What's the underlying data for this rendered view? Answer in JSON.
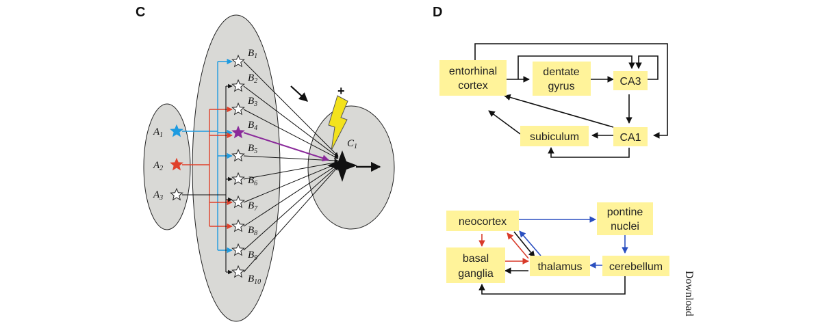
{
  "panels": {
    "c": "C",
    "d": "D"
  },
  "panel_c": {
    "nodes": {
      "a1": {
        "letter": "A",
        "index": "1"
      },
      "a2": {
        "letter": "A",
        "index": "2"
      },
      "a3": {
        "letter": "A",
        "index": "3"
      },
      "b1": {
        "letter": "B",
        "index": "1"
      },
      "b2": {
        "letter": "B",
        "index": "2"
      },
      "b3": {
        "letter": "B",
        "index": "3"
      },
      "b4": {
        "letter": "B",
        "index": "4"
      },
      "b5": {
        "letter": "B",
        "index": "5"
      },
      "b6": {
        "letter": "B",
        "index": "6"
      },
      "b7": {
        "letter": "B",
        "index": "7"
      },
      "b8": {
        "letter": "B",
        "index": "8"
      },
      "b9": {
        "letter": "B",
        "index": "9"
      },
      "b10": {
        "letter": "B",
        "index": "10"
      },
      "c1": {
        "letter": "C",
        "index": "1"
      }
    },
    "plus_sign": "+",
    "colors": {
      "blue": "#1e9be0",
      "red": "#e0402a",
      "purple": "#8a2a9a",
      "bolt": "#f3e21c",
      "ellipse": "#d9d9d6"
    }
  },
  "panel_d": {
    "hippocampus": {
      "entorhinal_line1": "entorhinal",
      "entorhinal_line2": "cortex",
      "dentate_line1": "dentate",
      "dentate_line2": "gyrus",
      "ca3": "CA3",
      "ca1": "CA1",
      "subiculum": "subiculum"
    },
    "motor_loop": {
      "neocortex": "neocortex",
      "pontine_line1": "pontine",
      "pontine_line2": "nuclei",
      "basal_line1": "basal",
      "basal_line2": "ganglia",
      "thalamus": "thalamus",
      "cerebellum": "cerebellum"
    },
    "colors": {
      "box": "#fff39a",
      "blue": "#2a4fc0",
      "red": "#d83a2a"
    }
  },
  "side_text": "Download"
}
